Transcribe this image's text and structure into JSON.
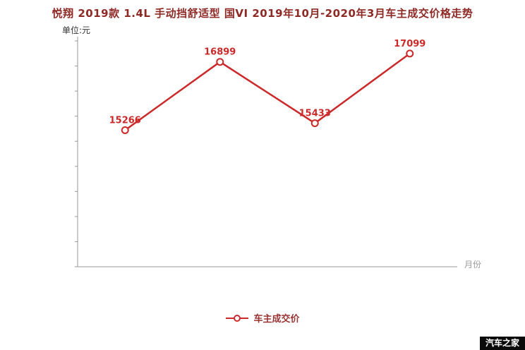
{
  "title": "悦翔 2019款 1.4L 手动挡舒适型 国VI 2019年10月-2020年3月车主成交价格走势",
  "y_unit_label": "单位:元",
  "x_axis_label": "月份",
  "legend": {
    "label": "车主成交价"
  },
  "watermark": "汽车之家",
  "colors": {
    "line": "#cc2a2a",
    "title": "#8e2a26",
    "legend_text": "#993333",
    "axis": "#999999",
    "unit_text": "#333333",
    "x_label_text": "#999999",
    "watermark_bg": "#0a0a0a",
    "watermark_text": "#ffffff",
    "background": "#ffffff"
  },
  "chart_data": {
    "type": "line",
    "title": "悦翔 2019款 1.4L 手动挡舒适型 国VI 2019年10月-2020年3月车主成交价格走势",
    "series": [
      {
        "name": "车主成交价",
        "values": [
          15266,
          16899,
          15433,
          17099
        ]
      }
    ],
    "point_labels": [
      "15266",
      "16899",
      "15433",
      "17099"
    ],
    "ylabel": "单位:元",
    "xlabel": "月份",
    "ylim": [
      12000,
      17400
    ],
    "x_tick_labels": [],
    "x_tick_labels_visible": false,
    "grid": false,
    "legend_position": "bottom",
    "marker": "open-circle"
  }
}
